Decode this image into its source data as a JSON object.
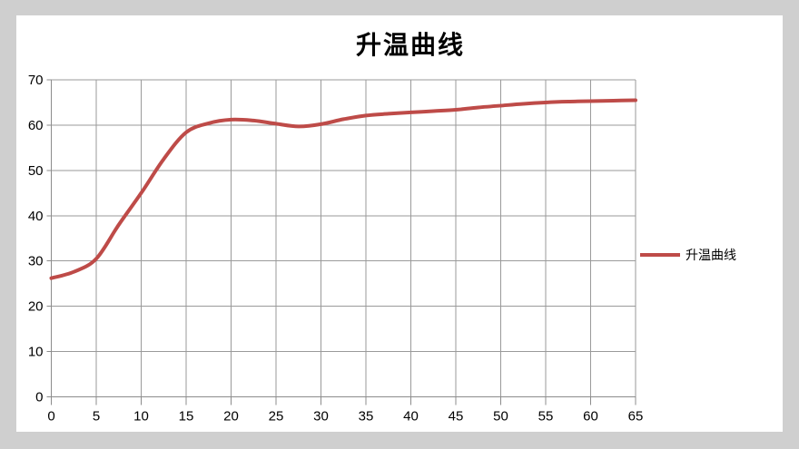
{
  "page": {
    "background_color": "#cfcfcf",
    "chart_background_color": "#ffffff"
  },
  "chart_data": {
    "type": "line",
    "title": "升温曲线",
    "xlabel": "",
    "ylabel": "",
    "xlim": [
      0,
      65
    ],
    "ylim": [
      0,
      70
    ],
    "x_ticks": [
      0,
      5,
      10,
      15,
      20,
      25,
      30,
      35,
      40,
      45,
      50,
      55,
      60,
      65
    ],
    "y_ticks": [
      0,
      10,
      20,
      30,
      40,
      50,
      60,
      70
    ],
    "grid": true,
    "legend_position": "right",
    "series": [
      {
        "name": "升温曲线",
        "color": "#be4b48",
        "x": [
          0,
          2.5,
          5,
          7.5,
          10,
          12.5,
          15,
          17.5,
          20,
          22.5,
          25,
          27.5,
          30,
          32.5,
          35,
          37.5,
          40,
          42.5,
          45,
          47.5,
          50,
          52.5,
          55,
          57.5,
          60,
          62.5,
          65
        ],
        "y": [
          26.2,
          27.6,
          30.5,
          38,
          45,
          52.5,
          58.4,
          60.4,
          61.2,
          61.0,
          60.3,
          59.7,
          60.2,
          61.3,
          62.1,
          62.5,
          62.8,
          63.1,
          63.4,
          63.9,
          64.3,
          64.7,
          65.0,
          65.2,
          65.3,
          65.4,
          65.5
        ]
      }
    ]
  },
  "legend": {
    "label": "升温曲线"
  },
  "style": {
    "gridline_color": "#9a9a9a",
    "axis_color": "#8c8c8c",
    "line_width": 4,
    "tick_label_color": "#000000"
  }
}
